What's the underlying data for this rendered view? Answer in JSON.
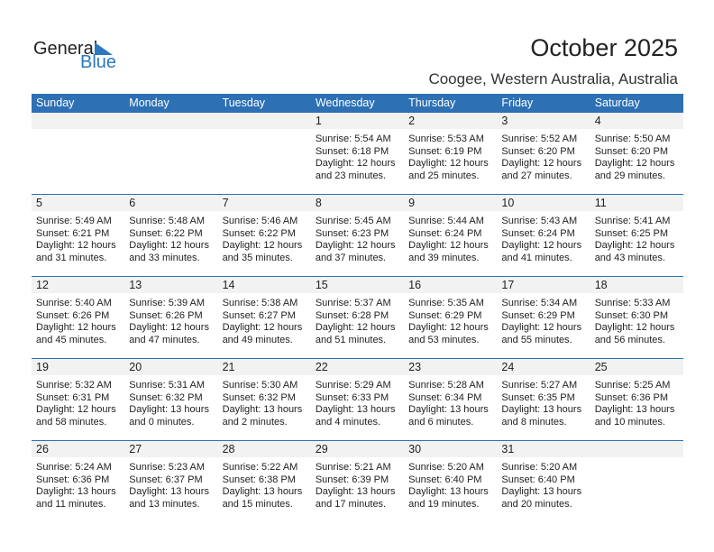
{
  "logo": {
    "general": "General",
    "blue": "Blue"
  },
  "title": "October 2025",
  "location": "Coogee, Western Australia, Australia",
  "colors": {
    "header": "#2d70b4",
    "accent": "#2a78c0"
  },
  "days": [
    "Sunday",
    "Monday",
    "Tuesday",
    "Wednesday",
    "Thursday",
    "Friday",
    "Saturday"
  ],
  "weeks": [
    [
      null,
      null,
      null,
      {
        "d": "1",
        "sr": "Sunrise: 5:54 AM",
        "ss": "Sunset: 6:18 PM",
        "dl": "Daylight: 12 hours",
        "dm": "and 23 minutes."
      },
      {
        "d": "2",
        "sr": "Sunrise: 5:53 AM",
        "ss": "Sunset: 6:19 PM",
        "dl": "Daylight: 12 hours",
        "dm": "and 25 minutes."
      },
      {
        "d": "3",
        "sr": "Sunrise: 5:52 AM",
        "ss": "Sunset: 6:20 PM",
        "dl": "Daylight: 12 hours",
        "dm": "and 27 minutes."
      },
      {
        "d": "4",
        "sr": "Sunrise: 5:50 AM",
        "ss": "Sunset: 6:20 PM",
        "dl": "Daylight: 12 hours",
        "dm": "and 29 minutes."
      }
    ],
    [
      {
        "d": "5",
        "sr": "Sunrise: 5:49 AM",
        "ss": "Sunset: 6:21 PM",
        "dl": "Daylight: 12 hours",
        "dm": "and 31 minutes."
      },
      {
        "d": "6",
        "sr": "Sunrise: 5:48 AM",
        "ss": "Sunset: 6:22 PM",
        "dl": "Daylight: 12 hours",
        "dm": "and 33 minutes."
      },
      {
        "d": "7",
        "sr": "Sunrise: 5:46 AM",
        "ss": "Sunset: 6:22 PM",
        "dl": "Daylight: 12 hours",
        "dm": "and 35 minutes."
      },
      {
        "d": "8",
        "sr": "Sunrise: 5:45 AM",
        "ss": "Sunset: 6:23 PM",
        "dl": "Daylight: 12 hours",
        "dm": "and 37 minutes."
      },
      {
        "d": "9",
        "sr": "Sunrise: 5:44 AM",
        "ss": "Sunset: 6:24 PM",
        "dl": "Daylight: 12 hours",
        "dm": "and 39 minutes."
      },
      {
        "d": "10",
        "sr": "Sunrise: 5:43 AM",
        "ss": "Sunset: 6:24 PM",
        "dl": "Daylight: 12 hours",
        "dm": "and 41 minutes."
      },
      {
        "d": "11",
        "sr": "Sunrise: 5:41 AM",
        "ss": "Sunset: 6:25 PM",
        "dl": "Daylight: 12 hours",
        "dm": "and 43 minutes."
      }
    ],
    [
      {
        "d": "12",
        "sr": "Sunrise: 5:40 AM",
        "ss": "Sunset: 6:26 PM",
        "dl": "Daylight: 12 hours",
        "dm": "and 45 minutes."
      },
      {
        "d": "13",
        "sr": "Sunrise: 5:39 AM",
        "ss": "Sunset: 6:26 PM",
        "dl": "Daylight: 12 hours",
        "dm": "and 47 minutes."
      },
      {
        "d": "14",
        "sr": "Sunrise: 5:38 AM",
        "ss": "Sunset: 6:27 PM",
        "dl": "Daylight: 12 hours",
        "dm": "and 49 minutes."
      },
      {
        "d": "15",
        "sr": "Sunrise: 5:37 AM",
        "ss": "Sunset: 6:28 PM",
        "dl": "Daylight: 12 hours",
        "dm": "and 51 minutes."
      },
      {
        "d": "16",
        "sr": "Sunrise: 5:35 AM",
        "ss": "Sunset: 6:29 PM",
        "dl": "Daylight: 12 hours",
        "dm": "and 53 minutes."
      },
      {
        "d": "17",
        "sr": "Sunrise: 5:34 AM",
        "ss": "Sunset: 6:29 PM",
        "dl": "Daylight: 12 hours",
        "dm": "and 55 minutes."
      },
      {
        "d": "18",
        "sr": "Sunrise: 5:33 AM",
        "ss": "Sunset: 6:30 PM",
        "dl": "Daylight: 12 hours",
        "dm": "and 56 minutes."
      }
    ],
    [
      {
        "d": "19",
        "sr": "Sunrise: 5:32 AM",
        "ss": "Sunset: 6:31 PM",
        "dl": "Daylight: 12 hours",
        "dm": "and 58 minutes."
      },
      {
        "d": "20",
        "sr": "Sunrise: 5:31 AM",
        "ss": "Sunset: 6:32 PM",
        "dl": "Daylight: 13 hours",
        "dm": "and 0 minutes."
      },
      {
        "d": "21",
        "sr": "Sunrise: 5:30 AM",
        "ss": "Sunset: 6:32 PM",
        "dl": "Daylight: 13 hours",
        "dm": "and 2 minutes."
      },
      {
        "d": "22",
        "sr": "Sunrise: 5:29 AM",
        "ss": "Sunset: 6:33 PM",
        "dl": "Daylight: 13 hours",
        "dm": "and 4 minutes."
      },
      {
        "d": "23",
        "sr": "Sunrise: 5:28 AM",
        "ss": "Sunset: 6:34 PM",
        "dl": "Daylight: 13 hours",
        "dm": "and 6 minutes."
      },
      {
        "d": "24",
        "sr": "Sunrise: 5:27 AM",
        "ss": "Sunset: 6:35 PM",
        "dl": "Daylight: 13 hours",
        "dm": "and 8 minutes."
      },
      {
        "d": "25",
        "sr": "Sunrise: 5:25 AM",
        "ss": "Sunset: 6:36 PM",
        "dl": "Daylight: 13 hours",
        "dm": "and 10 minutes."
      }
    ],
    [
      {
        "d": "26",
        "sr": "Sunrise: 5:24 AM",
        "ss": "Sunset: 6:36 PM",
        "dl": "Daylight: 13 hours",
        "dm": "and 11 minutes."
      },
      {
        "d": "27",
        "sr": "Sunrise: 5:23 AM",
        "ss": "Sunset: 6:37 PM",
        "dl": "Daylight: 13 hours",
        "dm": "and 13 minutes."
      },
      {
        "d": "28",
        "sr": "Sunrise: 5:22 AM",
        "ss": "Sunset: 6:38 PM",
        "dl": "Daylight: 13 hours",
        "dm": "and 15 minutes."
      },
      {
        "d": "29",
        "sr": "Sunrise: 5:21 AM",
        "ss": "Sunset: 6:39 PM",
        "dl": "Daylight: 13 hours",
        "dm": "and 17 minutes."
      },
      {
        "d": "30",
        "sr": "Sunrise: 5:20 AM",
        "ss": "Sunset: 6:40 PM",
        "dl": "Daylight: 13 hours",
        "dm": "and 19 minutes."
      },
      {
        "d": "31",
        "sr": "Sunrise: 5:20 AM",
        "ss": "Sunset: 6:40 PM",
        "dl": "Daylight: 13 hours",
        "dm": "and 20 minutes."
      },
      null
    ]
  ]
}
